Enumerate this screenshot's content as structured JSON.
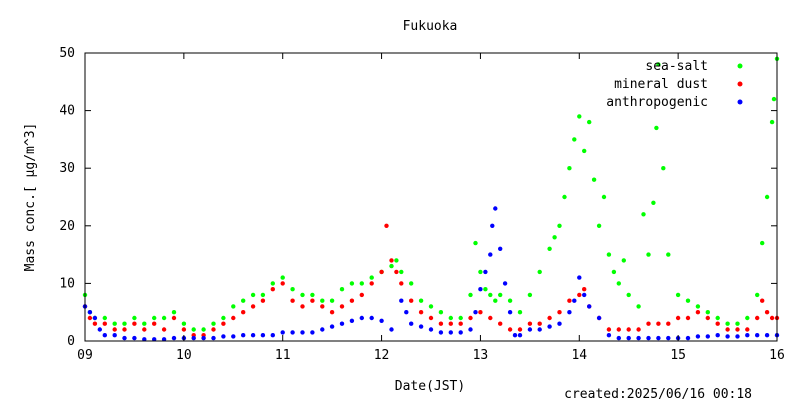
{
  "chart_data": {
    "type": "scatter",
    "title": "Fukuoka",
    "xlabel": "Date(JST)",
    "ylabel": "Mass conc.[ μg/m^3]",
    "xticks": [
      "09",
      "10",
      "11",
      "12",
      "13",
      "14",
      "15",
      "16"
    ],
    "yticks": [
      0,
      10,
      20,
      30,
      40,
      50
    ],
    "xlim": [
      9,
      16
    ],
    "ylim": [
      0,
      50
    ],
    "grid": false,
    "legend_position": "top-right",
    "footer": "created:2025/06/16 00:18",
    "series": [
      {
        "name": "sea-salt",
        "color": "#00ff00",
        "points": [
          [
            9.0,
            8
          ],
          [
            9.05,
            5
          ],
          [
            9.1,
            4
          ],
          [
            9.2,
            4
          ],
          [
            9.3,
            3
          ],
          [
            9.4,
            3
          ],
          [
            9.5,
            4
          ],
          [
            9.6,
            3
          ],
          [
            9.7,
            4
          ],
          [
            9.8,
            4
          ],
          [
            9.9,
            5
          ],
          [
            10.0,
            3
          ],
          [
            10.1,
            2
          ],
          [
            10.2,
            2
          ],
          [
            10.3,
            3
          ],
          [
            10.4,
            4
          ],
          [
            10.5,
            6
          ],
          [
            10.6,
            7
          ],
          [
            10.7,
            8
          ],
          [
            10.8,
            8
          ],
          [
            10.9,
            10
          ],
          [
            11.0,
            11
          ],
          [
            11.1,
            9
          ],
          [
            11.2,
            8
          ],
          [
            11.3,
            8
          ],
          [
            11.4,
            7
          ],
          [
            11.5,
            7
          ],
          [
            11.6,
            9
          ],
          [
            11.7,
            10
          ],
          [
            11.8,
            10
          ],
          [
            11.9,
            11
          ],
          [
            12.0,
            12
          ],
          [
            12.1,
            13
          ],
          [
            12.15,
            14
          ],
          [
            12.2,
            12
          ],
          [
            12.3,
            10
          ],
          [
            12.4,
            7
          ],
          [
            12.5,
            6
          ],
          [
            12.6,
            5
          ],
          [
            12.7,
            4
          ],
          [
            12.8,
            4
          ],
          [
            12.9,
            8
          ],
          [
            12.95,
            17
          ],
          [
            13.0,
            12
          ],
          [
            13.05,
            9
          ],
          [
            13.1,
            8
          ],
          [
            13.15,
            7
          ],
          [
            13.2,
            8
          ],
          [
            13.3,
            7
          ],
          [
            13.4,
            5
          ],
          [
            13.5,
            8
          ],
          [
            13.6,
            12
          ],
          [
            13.7,
            16
          ],
          [
            13.75,
            18
          ],
          [
            13.8,
            20
          ],
          [
            13.85,
            25
          ],
          [
            13.9,
            30
          ],
          [
            13.95,
            35
          ],
          [
            14.0,
            39
          ],
          [
            14.05,
            33
          ],
          [
            14.1,
            38
          ],
          [
            14.15,
            28
          ],
          [
            14.2,
            20
          ],
          [
            14.25,
            25
          ],
          [
            14.3,
            15
          ],
          [
            14.35,
            12
          ],
          [
            14.4,
            10
          ],
          [
            14.45,
            14
          ],
          [
            14.5,
            8
          ],
          [
            14.6,
            6
          ],
          [
            14.65,
            22
          ],
          [
            14.7,
            15
          ],
          [
            14.75,
            24
          ],
          [
            14.78,
            37
          ],
          [
            14.8,
            48
          ],
          [
            14.85,
            30
          ],
          [
            14.9,
            15
          ],
          [
            15.0,
            8
          ],
          [
            15.1,
            7
          ],
          [
            15.2,
            6
          ],
          [
            15.3,
            5
          ],
          [
            15.4,
            4
          ],
          [
            15.5,
            3
          ],
          [
            15.6,
            3
          ],
          [
            15.7,
            4
          ],
          [
            15.8,
            8
          ],
          [
            15.85,
            17
          ],
          [
            15.9,
            25
          ],
          [
            15.95,
            38
          ],
          [
            15.97,
            42
          ],
          [
            16.0,
            49
          ]
        ]
      },
      {
        "name": "mineral dust",
        "color": "#ff0000",
        "points": [
          [
            9.0,
            6
          ],
          [
            9.05,
            4
          ],
          [
            9.1,
            3
          ],
          [
            9.2,
            3
          ],
          [
            9.3,
            2
          ],
          [
            9.4,
            2
          ],
          [
            9.5,
            3
          ],
          [
            9.6,
            2
          ],
          [
            9.7,
            3
          ],
          [
            9.8,
            2
          ],
          [
            9.9,
            4
          ],
          [
            10.0,
            2
          ],
          [
            10.1,
            1
          ],
          [
            10.2,
            1
          ],
          [
            10.3,
            2
          ],
          [
            10.4,
            3
          ],
          [
            10.5,
            4
          ],
          [
            10.6,
            5
          ],
          [
            10.7,
            6
          ],
          [
            10.8,
            7
          ],
          [
            10.9,
            9
          ],
          [
            11.0,
            10
          ],
          [
            11.1,
            7
          ],
          [
            11.2,
            6
          ],
          [
            11.3,
            7
          ],
          [
            11.4,
            6
          ],
          [
            11.5,
            5
          ],
          [
            11.6,
            6
          ],
          [
            11.7,
            7
          ],
          [
            11.8,
            8
          ],
          [
            11.9,
            10
          ],
          [
            12.0,
            12
          ],
          [
            12.05,
            20
          ],
          [
            12.1,
            14
          ],
          [
            12.15,
            12
          ],
          [
            12.2,
            10
          ],
          [
            12.3,
            7
          ],
          [
            12.4,
            5
          ],
          [
            12.5,
            4
          ],
          [
            12.6,
            3
          ],
          [
            12.7,
            3
          ],
          [
            12.8,
            3
          ],
          [
            12.9,
            4
          ],
          [
            13.0,
            5
          ],
          [
            13.1,
            4
          ],
          [
            13.2,
            3
          ],
          [
            13.3,
            2
          ],
          [
            13.4,
            2
          ],
          [
            13.5,
            3
          ],
          [
            13.6,
            3
          ],
          [
            13.7,
            4
          ],
          [
            13.8,
            5
          ],
          [
            13.9,
            7
          ],
          [
            14.0,
            8
          ],
          [
            14.05,
            9
          ],
          [
            14.1,
            6
          ],
          [
            14.2,
            4
          ],
          [
            14.3,
            2
          ],
          [
            14.4,
            2
          ],
          [
            14.5,
            2
          ],
          [
            14.6,
            2
          ],
          [
            14.7,
            3
          ],
          [
            14.8,
            3
          ],
          [
            14.9,
            3
          ],
          [
            15.0,
            4
          ],
          [
            15.1,
            4
          ],
          [
            15.2,
            5
          ],
          [
            15.3,
            4
          ],
          [
            15.4,
            3
          ],
          [
            15.5,
            2
          ],
          [
            15.6,
            2
          ],
          [
            15.7,
            2
          ],
          [
            15.8,
            4
          ],
          [
            15.85,
            7
          ],
          [
            15.9,
            5
          ],
          [
            15.95,
            4
          ],
          [
            16.0,
            4
          ]
        ]
      },
      {
        "name": "anthropogenic",
        "color": "#0000ff",
        "points": [
          [
            9.0,
            6
          ],
          [
            9.05,
            5
          ],
          [
            9.1,
            4
          ],
          [
            9.15,
            2
          ],
          [
            9.2,
            1
          ],
          [
            9.3,
            1
          ],
          [
            9.4,
            0.5
          ],
          [
            9.5,
            0.5
          ],
          [
            9.6,
            0.3
          ],
          [
            9.7,
            0.3
          ],
          [
            9.8,
            0.3
          ],
          [
            9.9,
            0.5
          ],
          [
            10.0,
            0.5
          ],
          [
            10.1,
            0.5
          ],
          [
            10.2,
            0.5
          ],
          [
            10.3,
            0.5
          ],
          [
            10.4,
            0.8
          ],
          [
            10.5,
            0.8
          ],
          [
            10.6,
            1
          ],
          [
            10.7,
            1
          ],
          [
            10.8,
            1
          ],
          [
            10.9,
            1
          ],
          [
            11.0,
            1.5
          ],
          [
            11.1,
            1.5
          ],
          [
            11.2,
            1.5
          ],
          [
            11.3,
            1.5
          ],
          [
            11.4,
            2
          ],
          [
            11.5,
            2.5
          ],
          [
            11.6,
            3
          ],
          [
            11.7,
            3.5
          ],
          [
            11.8,
            4
          ],
          [
            11.9,
            4
          ],
          [
            12.0,
            3.5
          ],
          [
            12.1,
            2
          ],
          [
            12.2,
            7
          ],
          [
            12.25,
            5
          ],
          [
            12.3,
            3
          ],
          [
            12.4,
            2.5
          ],
          [
            12.5,
            2
          ],
          [
            12.6,
            1.5
          ],
          [
            12.7,
            1.5
          ],
          [
            12.8,
            1.5
          ],
          [
            12.9,
            2
          ],
          [
            12.95,
            5
          ],
          [
            13.0,
            9
          ],
          [
            13.05,
            12
          ],
          [
            13.1,
            15
          ],
          [
            13.12,
            20
          ],
          [
            13.15,
            23
          ],
          [
            13.2,
            16
          ],
          [
            13.25,
            10
          ],
          [
            13.3,
            5
          ],
          [
            13.35,
            1
          ],
          [
            13.4,
            1
          ],
          [
            13.5,
            2
          ],
          [
            13.6,
            2
          ],
          [
            13.7,
            2.5
          ],
          [
            13.8,
            3
          ],
          [
            13.9,
            5
          ],
          [
            13.95,
            7
          ],
          [
            14.0,
            11
          ],
          [
            14.05,
            8
          ],
          [
            14.1,
            6
          ],
          [
            14.2,
            4
          ],
          [
            14.3,
            1
          ],
          [
            14.4,
            0.5
          ],
          [
            14.5,
            0.5
          ],
          [
            14.6,
            0.5
          ],
          [
            14.7,
            0.5
          ],
          [
            14.8,
            0.5
          ],
          [
            14.9,
            0.5
          ],
          [
            15.0,
            0.5
          ],
          [
            15.1,
            0.5
          ],
          [
            15.2,
            0.8
          ],
          [
            15.3,
            0.8
          ],
          [
            15.4,
            1
          ],
          [
            15.5,
            0.8
          ],
          [
            15.6,
            0.8
          ],
          [
            15.7,
            1
          ],
          [
            15.8,
            1
          ],
          [
            15.9,
            1
          ],
          [
            16.0,
            1
          ]
        ]
      }
    ]
  }
}
